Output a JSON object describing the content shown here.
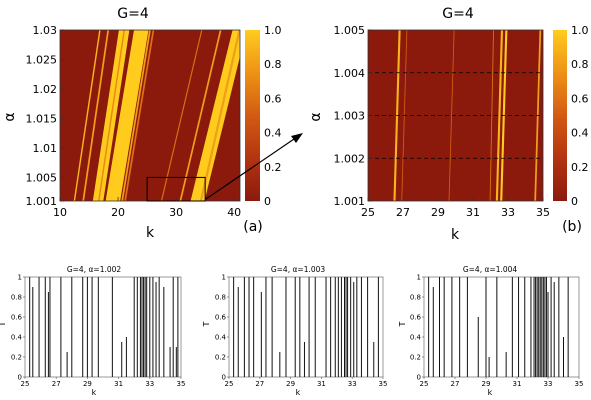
{
  "chart_data": [
    {
      "id": "a",
      "type": "heatmap",
      "title": "G=4",
      "panel_label": "(a)",
      "xlabel": "k",
      "ylabel": "α",
      "xlim": [
        10,
        41
      ],
      "ylim": [
        1.001,
        1.03
      ],
      "xticks": [
        10,
        20,
        30,
        40
      ],
      "yticks": [
        "1.001",
        "1.005",
        "1.01",
        "1.015",
        "1.02",
        "1.025",
        "1.03"
      ],
      "colorbar": {
        "range": [
          0,
          1
        ],
        "ticks": [
          "0",
          "0.2",
          "0.4",
          "0.6",
          "0.8",
          "1.0"
        ]
      },
      "background_color": "#8b1a0d",
      "bands": [
        {
          "k_at_top": 16.8,
          "k_at_bottom": 12.3,
          "width": 0.25,
          "value": 0.9
        },
        {
          "k_at_top": 18.2,
          "k_at_bottom": 13.8,
          "width": 0.3,
          "value": 0.8
        },
        {
          "k_at_top": 20.2,
          "k_at_bottom": 15.6,
          "width": 1.8,
          "value": 1.0
        },
        {
          "k_at_top": 21.0,
          "k_at_bottom": 16.5,
          "width": 0.25,
          "value": 0.7
        },
        {
          "k_at_top": 22.8,
          "k_at_bottom": 17.8,
          "width": 2.2,
          "value": 1.0
        },
        {
          "k_at_top": 24.6,
          "k_at_bottom": 19.6,
          "width": 0.7,
          "value": 1.0
        },
        {
          "k_at_top": 25.4,
          "k_at_bottom": 20.5,
          "width": 0.3,
          "value": 0.8
        },
        {
          "k_at_top": 26.0,
          "k_at_bottom": 21.0,
          "width": 0.3,
          "value": 0.6
        },
        {
          "k_at_top": 34.4,
          "k_at_bottom": 27.3,
          "width": 0.2,
          "value": 0.6
        },
        {
          "k_at_top": 37.6,
          "k_at_bottom": 30.5,
          "width": 0.3,
          "value": 0.8
        },
        {
          "k_at_top": 39.8,
          "k_at_bottom": 32.4,
          "width": 2.4,
          "value": 1.0
        },
        {
          "k_at_top": 40.8,
          "k_at_bottom": 34.0,
          "width": 0.4,
          "value": 0.8
        }
      ],
      "zoom_box": {
        "k": [
          25,
          35
        ],
        "alpha": [
          1.001,
          1.005
        ]
      }
    },
    {
      "id": "b",
      "type": "heatmap",
      "title": "G=4",
      "panel_label": "(b)",
      "xlabel": "k",
      "ylabel": "α",
      "xlim": [
        25,
        35
      ],
      "ylim": [
        1.001,
        1.005
      ],
      "xticks": [
        25,
        27,
        29,
        31,
        33,
        35
      ],
      "yticks": [
        "1.001",
        "1.002",
        "1.003",
        "1.004",
        "1.005"
      ],
      "colorbar": {
        "range": [
          0,
          1
        ],
        "ticks": [
          "0",
          "0.2",
          "0.4",
          "0.6",
          "0.8",
          "1.0"
        ]
      },
      "background_color": "#8b1a0d",
      "bands": [
        {
          "k_at_top": 26.75,
          "k_at_bottom": 26.45,
          "width": 0.12,
          "value": 0.9
        },
        {
          "k_at_top": 27.2,
          "k_at_bottom": 26.9,
          "width": 0.05,
          "value": 0.5
        },
        {
          "k_at_top": 29.9,
          "k_at_bottom": 29.6,
          "width": 0.05,
          "value": 0.5
        },
        {
          "k_at_top": 32.15,
          "k_at_bottom": 31.95,
          "width": 0.05,
          "value": 0.6
        },
        {
          "k_at_top": 32.6,
          "k_at_bottom": 32.3,
          "width": 0.12,
          "value": 0.9
        },
        {
          "k_at_top": 32.85,
          "k_at_bottom": 32.55,
          "width": 0.12,
          "value": 1.0
        },
        {
          "k_at_top": 34.8,
          "k_at_bottom": 34.5,
          "width": 0.1,
          "value": 0.8
        }
      ],
      "dashed_lines_alpha": [
        1.002,
        1.003,
        1.004
      ]
    },
    {
      "id": "c1",
      "type": "bar",
      "title": "G=4, α=1.002",
      "xlabel": "k",
      "ylabel": "T",
      "xlim": [
        25,
        35
      ],
      "ylim": [
        0,
        1
      ],
      "xticks": [
        25,
        27,
        29,
        31,
        33,
        35
      ],
      "yticks": [
        "0",
        "0.2",
        "0.4",
        "0.6",
        "0.8",
        "1"
      ],
      "x": [
        25.3,
        25.5,
        25.9,
        26.3,
        26.5,
        26.6,
        27.3,
        27.7,
        28.0,
        28.7,
        29.0,
        29.3,
        29.7,
        30.6,
        31.2,
        31.5,
        32.0,
        32.2,
        32.4,
        32.5,
        32.6,
        32.7,
        32.8,
        33.0,
        33.2,
        33.4,
        33.6,
        33.9,
        34.3,
        34.5,
        34.7,
        34.8
      ],
      "values": [
        1,
        0.9,
        1,
        1,
        0.85,
        1,
        1,
        0.25,
        1,
        1,
        1,
        1,
        1,
        1,
        0.35,
        0.4,
        1,
        1,
        1,
        1,
        1,
        1,
        1,
        1,
        1,
        0.95,
        1,
        0.9,
        0.3,
        1,
        0.3,
        1
      ]
    },
    {
      "id": "c2",
      "type": "bar",
      "title": "G=4, α=1.003",
      "xlabel": "k",
      "ylabel": "T",
      "xlim": [
        25,
        35
      ],
      "ylim": [
        0,
        1
      ],
      "xticks": [
        25,
        27,
        29,
        31,
        33,
        35
      ],
      "yticks": [
        "0",
        "0.2",
        "0.4",
        "0.6",
        "0.8",
        "1"
      ],
      "x": [
        25.3,
        25.6,
        26.0,
        26.3,
        26.6,
        27.1,
        27.4,
        27.8,
        28.3,
        28.7,
        29.3,
        29.6,
        29.9,
        30.2,
        30.6,
        31.3,
        31.6,
        31.9,
        32.1,
        32.3,
        32.5,
        32.6,
        32.7,
        32.9,
        33.1,
        33.3,
        33.6,
        34.0,
        34.4,
        34.7
      ],
      "values": [
        1,
        0.9,
        1,
        1,
        1,
        0.85,
        1,
        1,
        0.25,
        1,
        1,
        1,
        0.35,
        1,
        1,
        1,
        1,
        1,
        1,
        1,
        1,
        1,
        1,
        1,
        0.95,
        1,
        1,
        1,
        0.35,
        1
      ]
    },
    {
      "id": "c3",
      "type": "bar",
      "title": "G=4, α=1.004",
      "xlabel": "k",
      "ylabel": "T",
      "xlim": [
        25,
        35
      ],
      "ylim": [
        0,
        1
      ],
      "xticks": [
        25,
        27,
        29,
        31,
        33,
        35
      ],
      "yticks": [
        "0",
        "0.2",
        "0.4",
        "0.6",
        "0.8",
        "1"
      ],
      "x": [
        25.3,
        25.6,
        26.0,
        26.3,
        26.8,
        27.3,
        27.8,
        28.5,
        29.0,
        29.2,
        29.7,
        30.3,
        30.7,
        31.1,
        31.5,
        31.9,
        32.1,
        32.2,
        32.3,
        32.4,
        32.5,
        32.6,
        32.7,
        32.8,
        32.9,
        33.0,
        33.2,
        33.4,
        33.7,
        34.0,
        34.3
      ],
      "values": [
        1,
        0.9,
        1,
        1,
        1,
        1,
        1,
        0.6,
        1,
        0.2,
        1,
        0.25,
        1,
        1,
        1,
        1,
        1,
        1,
        1,
        1,
        1,
        1,
        1,
        1,
        1,
        0.85,
        1,
        0.95,
        1,
        0.4,
        1
      ]
    }
  ]
}
